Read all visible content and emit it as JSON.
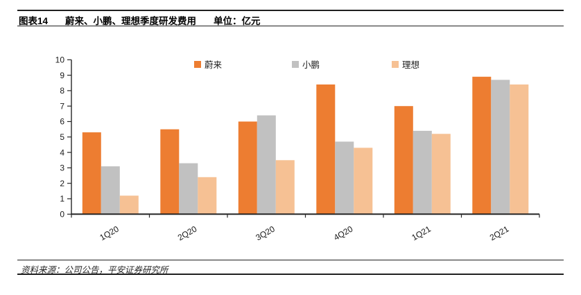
{
  "header": {
    "title_prefix": "图表14",
    "title": "蔚来、小鹏、理想季度研发费用",
    "unit": "单位：亿元"
  },
  "footer": {
    "source": "资料来源：公司公告，平安证券研究所"
  },
  "chart_data": {
    "type": "bar",
    "title": "蔚来、小鹏、理想季度研发费用（亿元）",
    "xlabel": "",
    "ylabel": "",
    "categories": [
      "1Q20",
      "2Q20",
      "3Q20",
      "4Q20",
      "1Q21",
      "2Q21"
    ],
    "series": [
      {
        "name": "蔚来",
        "color": "#ED7D31",
        "values": [
          5.3,
          5.5,
          6.0,
          8.4,
          7.0,
          8.9
        ]
      },
      {
        "name": "小鹏",
        "color": "#C1C1C1",
        "values": [
          3.1,
          3.3,
          6.4,
          4.7,
          5.4,
          8.7
        ]
      },
      {
        "name": "理想",
        "color": "#F6C194",
        "values": [
          1.2,
          2.4,
          3.5,
          4.3,
          5.2,
          8.4
        ]
      }
    ],
    "ylim": [
      0,
      10
    ],
    "ytick_step": 1,
    "yticks": [
      0,
      1,
      2,
      3,
      4,
      5,
      6,
      7,
      8,
      9,
      10
    ],
    "grid": false,
    "legend_position": "top",
    "x_label_rotation_deg": -30,
    "axis_color": "#262626",
    "tick_label_color": "#1a1a1a"
  }
}
